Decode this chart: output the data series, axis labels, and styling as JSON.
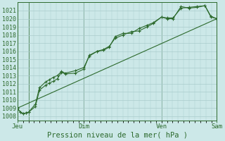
{
  "background_color": "#cce8e8",
  "grid_color": "#aacccc",
  "line_color": "#2d6a2d",
  "marker_color": "#2d6a2d",
  "xlabel": "Pression niveau de la mer( hPa )",
  "ylim": [
    1007.5,
    1022.0
  ],
  "ytick_min": 1008,
  "ytick_max": 1021,
  "xtick_labels": [
    "Jeu",
    "Dim",
    "Ven",
    "Sam"
  ],
  "xtick_positions": [
    0,
    0.333,
    0.722,
    1.0
  ],
  "vline_positions": [
    0.0,
    0.056,
    0.333,
    0.722,
    1.0
  ],
  "line1_t": [
    0.0,
    0.014,
    0.028,
    0.042,
    0.056,
    0.09,
    0.11,
    0.14,
    0.16,
    0.18,
    0.2,
    0.22,
    0.24,
    0.29,
    0.333,
    0.36,
    0.4,
    0.43,
    0.46,
    0.49,
    0.53,
    0.57,
    0.61,
    0.65,
    0.68,
    0.722,
    0.75,
    0.78,
    0.82,
    0.86,
    0.9,
    0.94,
    0.97,
    1.0
  ],
  "line1_y": [
    1009.0,
    1008.5,
    1008.3,
    1008.4,
    1008.5,
    1009.2,
    1011.2,
    1011.8,
    1012.1,
    1012.3,
    1012.6,
    1013.4,
    1013.2,
    1013.3,
    1013.8,
    1015.5,
    1016.0,
    1016.1,
    1016.5,
    1017.8,
    1018.2,
    1018.2,
    1018.8,
    1019.2,
    1019.5,
    1020.2,
    1020.0,
    1020.0,
    1021.5,
    1021.3,
    1021.4,
    1021.6,
    1020.3,
    1020.0
  ],
  "line2_t": [
    0.0,
    0.014,
    0.028,
    0.042,
    0.056,
    0.09,
    0.11,
    0.14,
    0.16,
    0.18,
    0.2,
    0.22,
    0.24,
    0.29,
    0.333,
    0.36,
    0.4,
    0.43,
    0.46,
    0.49,
    0.53,
    0.57,
    0.61,
    0.65,
    0.68,
    0.722,
    0.75,
    0.78,
    0.82,
    0.86,
    0.9,
    0.94,
    0.97,
    1.0
  ],
  "line2_y": [
    1009.0,
    1008.5,
    1008.3,
    1008.4,
    1008.5,
    1009.5,
    1011.5,
    1012.2,
    1012.5,
    1012.8,
    1013.0,
    1013.5,
    1013.3,
    1013.6,
    1014.0,
    1015.4,
    1016.0,
    1016.2,
    1016.6,
    1017.6,
    1018.0,
    1018.4,
    1018.5,
    1019.0,
    1019.4,
    1020.2,
    1020.1,
    1020.1,
    1021.3,
    1021.4,
    1021.5,
    1021.6,
    1020.2,
    1020.0
  ],
  "trend_t": [
    0.0,
    1.0
  ],
  "trend_y": [
    1009.0,
    1020.0
  ]
}
